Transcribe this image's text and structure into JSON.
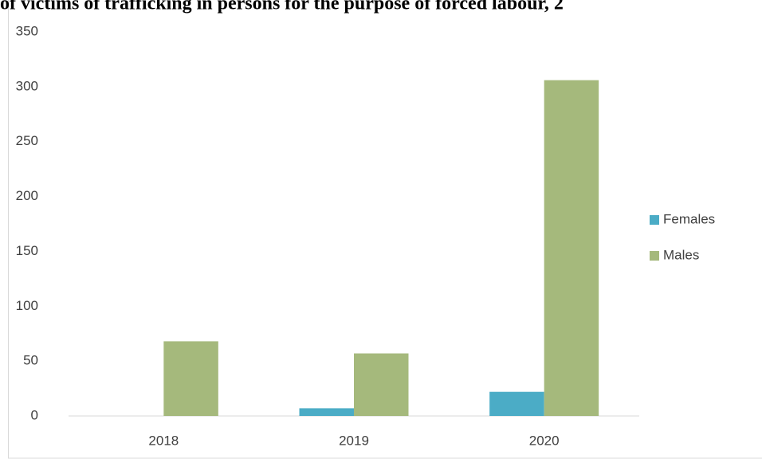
{
  "chart_data": {
    "type": "bar",
    "title": "of victims of trafficking in persons for the purpose of forced labour, 2",
    "categories": [
      "2018",
      "2019",
      "2020"
    ],
    "series": [
      {
        "name": "Females",
        "color": "#4bacc6",
        "values": [
          0,
          7,
          22
        ]
      },
      {
        "name": "Males",
        "color": "#a5b97c",
        "values": [
          68,
          57,
          306
        ]
      }
    ],
    "ylim": [
      0,
      350
    ],
    "yticks": [
      0,
      50,
      100,
      150,
      200,
      250,
      300,
      350
    ],
    "grid": false,
    "legend": "right"
  }
}
